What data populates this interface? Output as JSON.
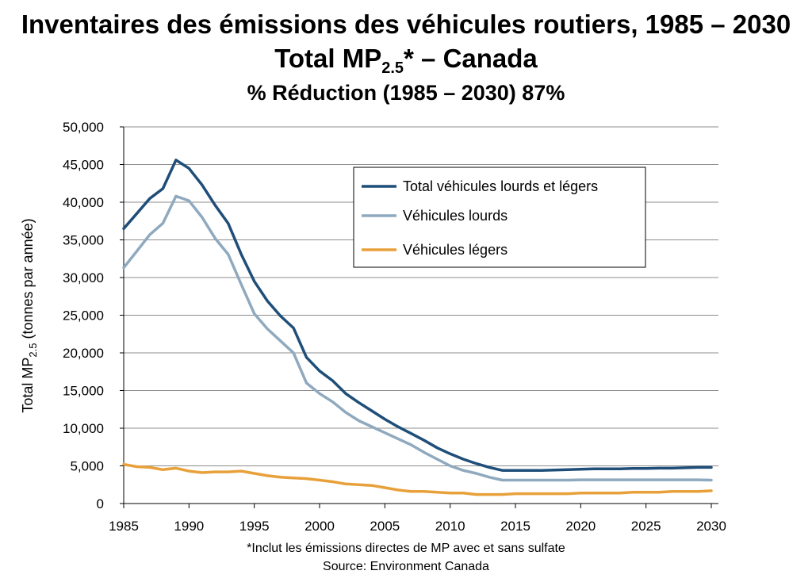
{
  "title_line1": "Inventaires des émissions des véhicules routiers, 1985 – 2030",
  "title_line2_pre": "Total MP",
  "title_line2_sub": "2.5",
  "title_line2_post": "* – Canada",
  "title_line3": "% Réduction (1985 – 2030) 87%",
  "footnote": "*Inclut les émissions directes de MP avec et sans sulfate",
  "source": "Source: Environment Canada",
  "chart_data": {
    "type": "line",
    "ylabel_pre": "Total MP",
    "ylabel_sub": "2.5",
    "ylabel_post": " (tonnes par année)",
    "xlim": [
      1985,
      2030
    ],
    "ylim": [
      0,
      50000
    ],
    "xticks": [
      "1985",
      "1990",
      "1995",
      "2000",
      "2005",
      "2010",
      "2015",
      "2020",
      "2025",
      "2030"
    ],
    "yticks": [
      "0",
      "5,000",
      "10,000",
      "15,000",
      "20,000",
      "25,000",
      "30,000",
      "35,000",
      "40,000",
      "45,000",
      "50,000"
    ],
    "grid": "horizontal",
    "legend_position": "top-right",
    "x": [
      1985,
      1986,
      1987,
      1988,
      1989,
      1990,
      1991,
      1992,
      1993,
      1994,
      1995,
      1996,
      1997,
      1998,
      1999,
      2000,
      2001,
      2002,
      2003,
      2004,
      2005,
      2006,
      2007,
      2008,
      2009,
      2010,
      2011,
      2012,
      2013,
      2014,
      2015,
      2016,
      2017,
      2018,
      2019,
      2020,
      2021,
      2022,
      2023,
      2024,
      2025,
      2026,
      2027,
      2028,
      2029,
      2030
    ],
    "series": [
      {
        "name": "Total véhicules lourds et légers",
        "color": "#1f4e79",
        "values": [
          36500,
          38500,
          40500,
          41800,
          45600,
          44500,
          42300,
          39600,
          37200,
          33100,
          29500,
          26900,
          24900,
          23300,
          19400,
          17600,
          16300,
          14600,
          13400,
          12300,
          11200,
          10200,
          9300,
          8400,
          7400,
          6600,
          5900,
          5300,
          4800,
          4400,
          4400,
          4400,
          4400,
          4450,
          4500,
          4550,
          4600,
          4600,
          4600,
          4650,
          4650,
          4700,
          4700,
          4750,
          4800,
          4800
        ]
      },
      {
        "name": "Véhicules lourds",
        "color": "#8fa9bf",
        "values": [
          31300,
          33500,
          35700,
          37200,
          40800,
          40200,
          38000,
          35200,
          33100,
          29100,
          25200,
          23200,
          21600,
          20000,
          16000,
          14600,
          13500,
          12100,
          11000,
          10200,
          9400,
          8600,
          7800,
          6800,
          5900,
          5000,
          4400,
          4000,
          3500,
          3100,
          3100,
          3100,
          3100,
          3100,
          3100,
          3150,
          3150,
          3150,
          3150,
          3150,
          3150,
          3150,
          3150,
          3150,
          3150,
          3100
        ]
      },
      {
        "name": "Véhicules légers",
        "color": "#e8a13a",
        "values": [
          5200,
          4900,
          4800,
          4500,
          4700,
          4300,
          4100,
          4200,
          4200,
          4300,
          4000,
          3700,
          3500,
          3400,
          3300,
          3100,
          2900,
          2600,
          2500,
          2400,
          2100,
          1800,
          1600,
          1600,
          1500,
          1400,
          1400,
          1200,
          1200,
          1200,
          1300,
          1300,
          1300,
          1300,
          1300,
          1400,
          1400,
          1400,
          1400,
          1500,
          1500,
          1500,
          1600,
          1600,
          1600,
          1700
        ]
      }
    ]
  }
}
